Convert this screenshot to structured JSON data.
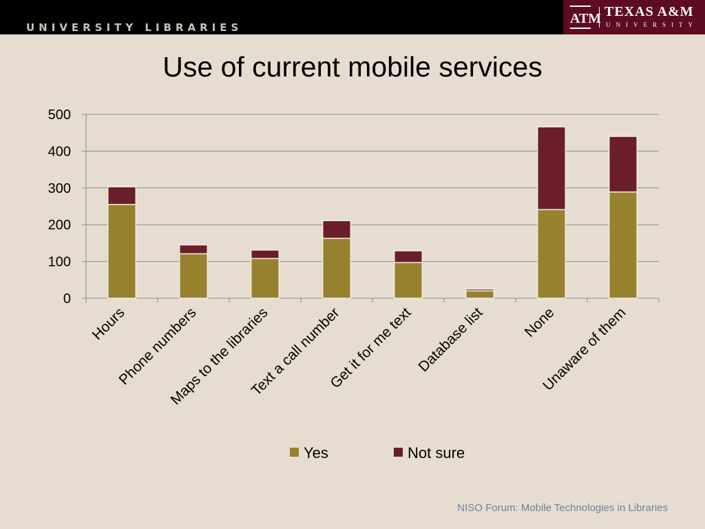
{
  "header": {
    "banner_text": "UNIVERSITY LIBRARIES",
    "logo_mark": "ATM",
    "logo_word": "TEXAS A&M",
    "logo_sub": "UNIVERSITY",
    "logo_color": "#5d0c22"
  },
  "slide": {
    "title": "Use of current mobile services",
    "footer": "NISO Forum:  Mobile Technologies in Libraries"
  },
  "chart_data": {
    "type": "bar",
    "stacked": true,
    "title": "",
    "xlabel": "",
    "ylabel": "",
    "ylim": [
      0,
      500
    ],
    "yticks": [
      0,
      100,
      200,
      300,
      400,
      500
    ],
    "grid": true,
    "legend_position": "bottom",
    "categories": [
      "Hours",
      "Phone numbers",
      "Maps to the libraries",
      "Text a call number",
      "Get it for me text",
      "Database list",
      "None",
      "Unaware of them"
    ],
    "series": [
      {
        "name": "Yes",
        "color": "#96812f",
        "values": [
          255,
          121,
          108,
          163,
          97,
          20,
          241,
          289
        ]
      },
      {
        "name": "Not sure",
        "color": "#6a1e2a",
        "values": [
          48,
          24,
          23,
          48,
          32,
          5,
          225,
          151
        ]
      }
    ]
  }
}
